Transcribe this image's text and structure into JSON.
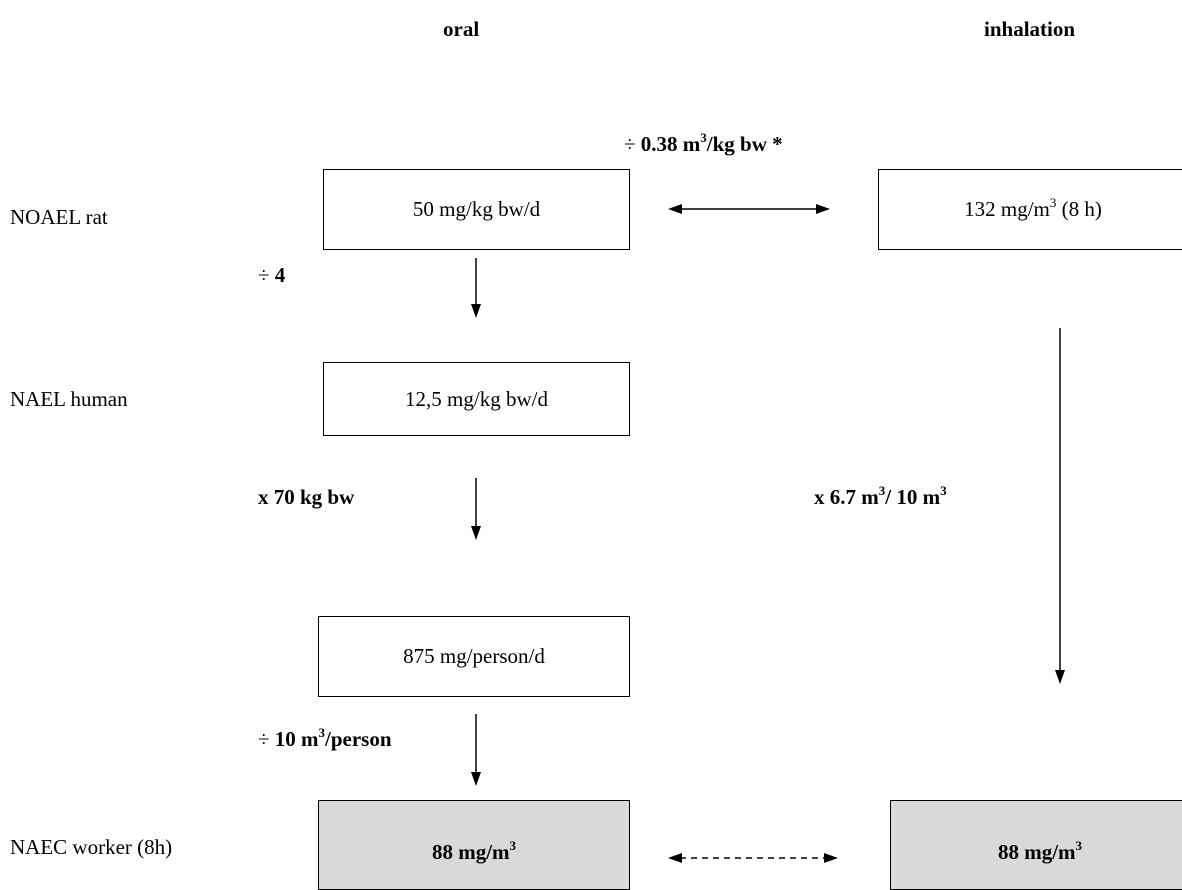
{
  "headers": {
    "oral": "oral",
    "inhalation": "inhalation"
  },
  "rows": {
    "noael_rat": "NOAEL rat",
    "nael_human": "NAEL human",
    "naec_worker": "NAEC worker (8h)"
  },
  "boxes": {
    "oral_noael": "50 mg/kg bw/d",
    "inhal_noael_pre": "132 mg/m",
    "inhal_noael_sup": "3",
    "inhal_noael_post": " (8 h)",
    "oral_nael": "12,5 mg/kg bw/d",
    "oral_person": "875 mg/person/d",
    "oral_naec_pre": "88 mg/m",
    "oral_naec_sup": "3",
    "inhal_naec_pre": "88 mg/m",
    "inhal_naec_sup": "3"
  },
  "operations": {
    "route_conv_pre": "÷ ",
    "route_conv_bold1": "0.38 m",
    "route_conv_sup": "3",
    "route_conv_bold2": "/kg bw *",
    "allometric_pre": "÷ ",
    "allometric_bold": "4",
    "body_weight": "x 70 kg bw",
    "breathing_pre": "÷ ",
    "breathing_bold1": "10 m",
    "breathing_sup": "3",
    "breathing_bold2": "/person",
    "inhal_adj_1": "x 6.7 m",
    "inhal_adj_sup1": "3",
    "inhal_adj_2": "/ 10 m",
    "inhal_adj_sup2": "3"
  },
  "colors": {
    "line": "#000000",
    "shaded_box": "#d9d9d9"
  }
}
